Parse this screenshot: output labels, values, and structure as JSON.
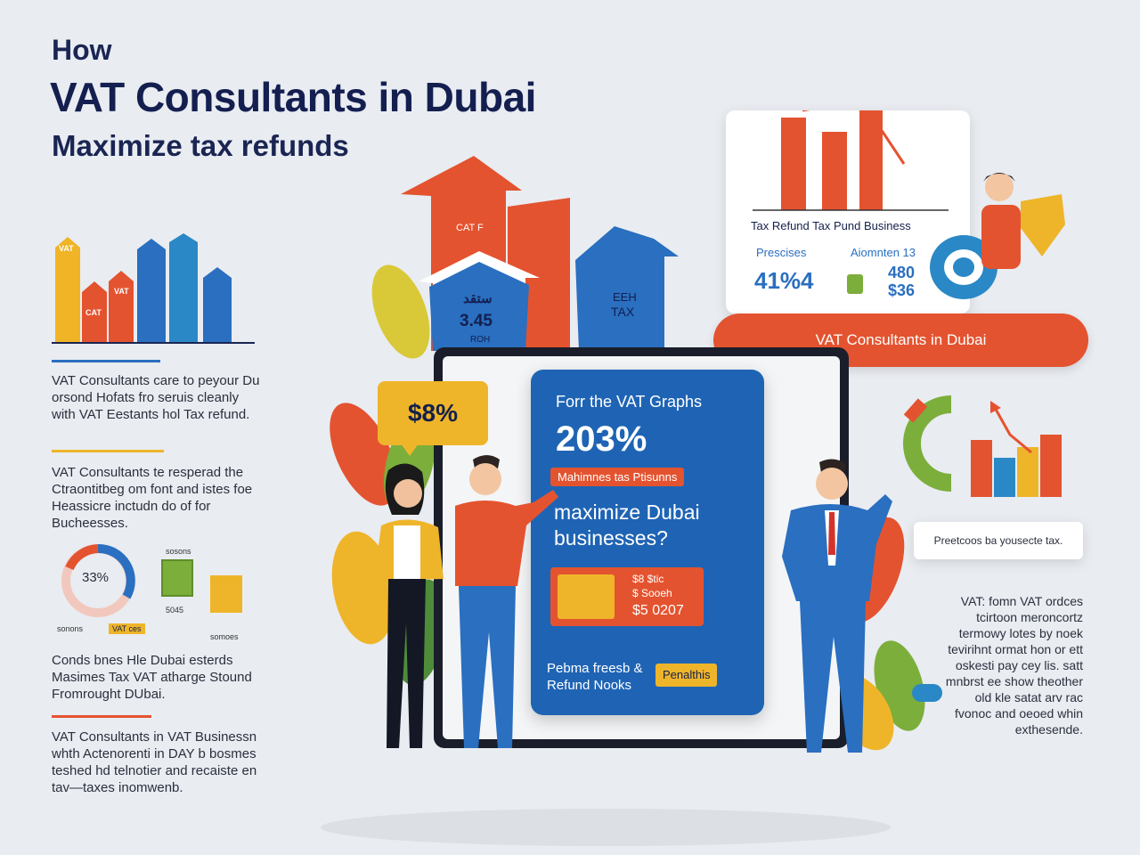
{
  "header": {
    "line1": "How",
    "line2": "VAT Consultants in Dubai",
    "line3": "Maximize tax refunds"
  },
  "left_chart": {
    "bar_labels": [
      "VAT",
      "CAT",
      "VAT"
    ]
  },
  "left_paragraphs": [
    "VAT Consultants care to peyour Du orsond Hofats fro seruis cleanly with VAT Eestants hol Tax refund.",
    "VAT Consultants te resperad the Ctraontitbeg om font and istes foe Heassicre inctudn do of for Bucheesses.",
    "Conds bnes Hle Dubai esterds Masimes Tax VAT atharge Stound Fromrought DUbai.",
    "VAT Consultants in VAT Businessn whth Actenorenti in DAY b bosmes teshed hd telnotier and recaiste en tav—taxes inomwenb."
  ],
  "donut": {
    "value": "33%",
    "label_left": "sonons",
    "label_mid": "VAT ces",
    "label_right": "somoes",
    "label_top": "sosons",
    "label_box": "5045"
  },
  "buildings": {
    "left_label": "CAT F",
    "mid_lines": [
      "ستقد",
      "3.45",
      "ROH"
    ],
    "right_lines": [
      "EEH",
      "TAX"
    ]
  },
  "report_card": {
    "title": "Tax Refund Tax Pund Business",
    "left_label": "Prescises",
    "left_value": "41%4",
    "right_label": "Aiomnten 13",
    "right_value_1": "480",
    "right_value_2": "$36"
  },
  "orange_banner": "VAT Consultants in Dubai",
  "speech_bubble": "$8%",
  "phone": {
    "line1": "Forr the VAT Graphs",
    "value": "203%",
    "badge": "Mahimnes tas Ptisunns",
    "question": "maximize Dubai businesses?",
    "inner_lines": [
      "$8 $tic",
      "$ Sooeh",
      "$5 0207"
    ],
    "bottom_left": "Pebma freesb & Refund Nooks",
    "bottom_right": "Penalthis"
  },
  "right_card": "Preetcoos ba yousecte tax.",
  "right_paragraph": "VAT: fomn VAT ordces tcirtoon meroncortz termowy lotes by noek tevirihnt ormat hon or ett oskesti pay cey lis. satt mnbrst ee show theother old kle satat arv rac fvonoc and oeoed whin exthesende.",
  "colors": {
    "navy": "#141f50",
    "orange": "#e4532f",
    "blue": "#2a6fc0",
    "yellow": "#efb52a",
    "green": "#7cae3b"
  }
}
